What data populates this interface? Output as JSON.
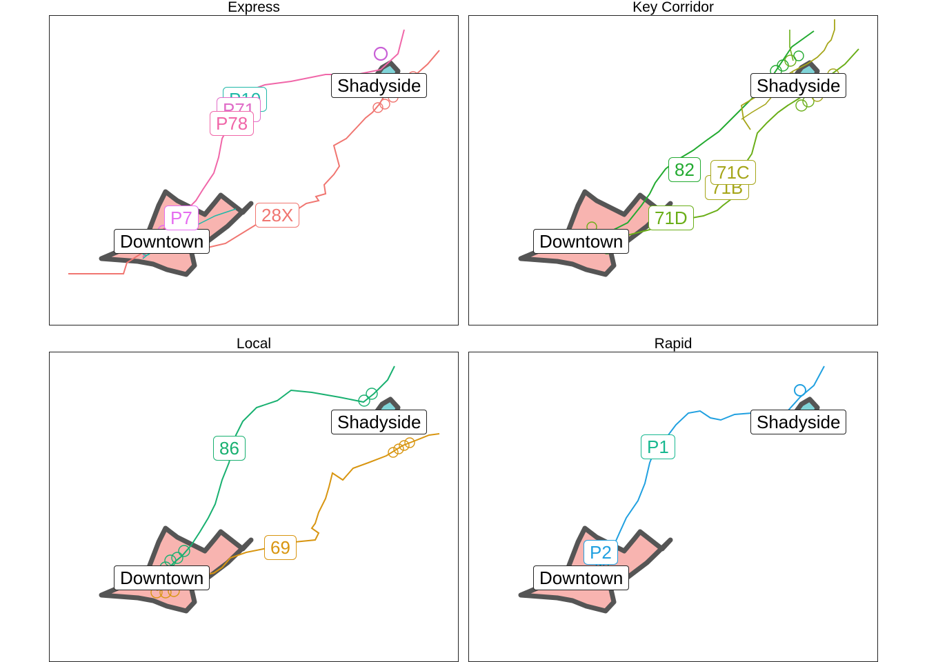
{
  "panels": [
    {
      "title": "Express"
    },
    {
      "title": "Key Corridor"
    },
    {
      "title": "Local"
    },
    {
      "title": "Rapid"
    }
  ],
  "neighborhoods": {
    "downtown": "Downtown",
    "shadyside": "Shadyside"
  },
  "colors": {
    "downtown_fill": "#F8B4B0",
    "shadyside_fill": "#80D4D8",
    "outline": "#555555",
    "route_28X": "#F07570",
    "route_P7": "#E56CF0",
    "route_P78": "#F066A8",
    "route_P71": "#E06CC8",
    "route_P10": "#1FB8A8",
    "route_82": "#22AA30",
    "route_71D": "#6AAE18",
    "route_71C": "#A5A518",
    "route_71B": "#A5A518",
    "route_86": "#18B070",
    "route_69": "#D89510",
    "route_P1": "#18B890",
    "route_P2": "#20A0E0"
  },
  "routes": {
    "express": {
      "r28X": "28X",
      "rP7": "P7",
      "rP78": "P78",
      "rP71": "P71",
      "rP10": "P10"
    },
    "key_corridor": {
      "r82": "82",
      "r71D": "71D",
      "r71C": "71C",
      "r71B": "71B"
    },
    "local": {
      "r86": "86",
      "r69": "69"
    },
    "rapid": {
      "rP1": "P1",
      "rP2": "P2"
    }
  }
}
